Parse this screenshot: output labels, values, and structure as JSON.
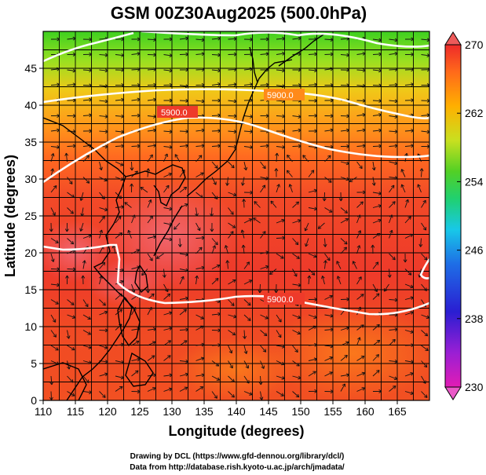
{
  "title": "GSM 00Z30Aug2025 (500.0hPa)",
  "x_axis": {
    "label": "Longitude (degrees)",
    "range": [
      110,
      170
    ],
    "ticks": [
      110,
      115,
      120,
      125,
      130,
      135,
      140,
      145,
      150,
      155,
      160,
      165
    ]
  },
  "y_axis": {
    "label": "Latitude  (degrees)",
    "range": [
      0,
      50
    ],
    "ticks": [
      0,
      5,
      10,
      15,
      20,
      25,
      30,
      35,
      40,
      45
    ]
  },
  "colorbar": {
    "range": [
      230,
      270
    ],
    "ticks": [
      230,
      238,
      246,
      254,
      262,
      270
    ],
    "colors": [
      "#e21cb4",
      "#9a1fd4",
      "#2a1ed2",
      "#1e6ee6",
      "#18c8e8",
      "#20d070",
      "#52d025",
      "#c8e020",
      "#ffb000",
      "#ff6a1a",
      "#ee2a2a"
    ]
  },
  "contours": [
    {
      "label": "5900.0",
      "label_lat": 40.3,
      "label_lon": 128.5
    },
    {
      "label": "5900.0",
      "label_lat": 44.9,
      "label_lon": 146.4
    },
    {
      "label": "5900.0",
      "label_lat": 14.9,
      "label_lon": 146.4
    }
  ],
  "credits": {
    "line1": "Drawing by DCL (https://www.gfd-dennou.org/library/dcl/)",
    "line2": "Data from http://database.rish.kyoto-u.ac.jp/arch/jmadata/"
  }
}
